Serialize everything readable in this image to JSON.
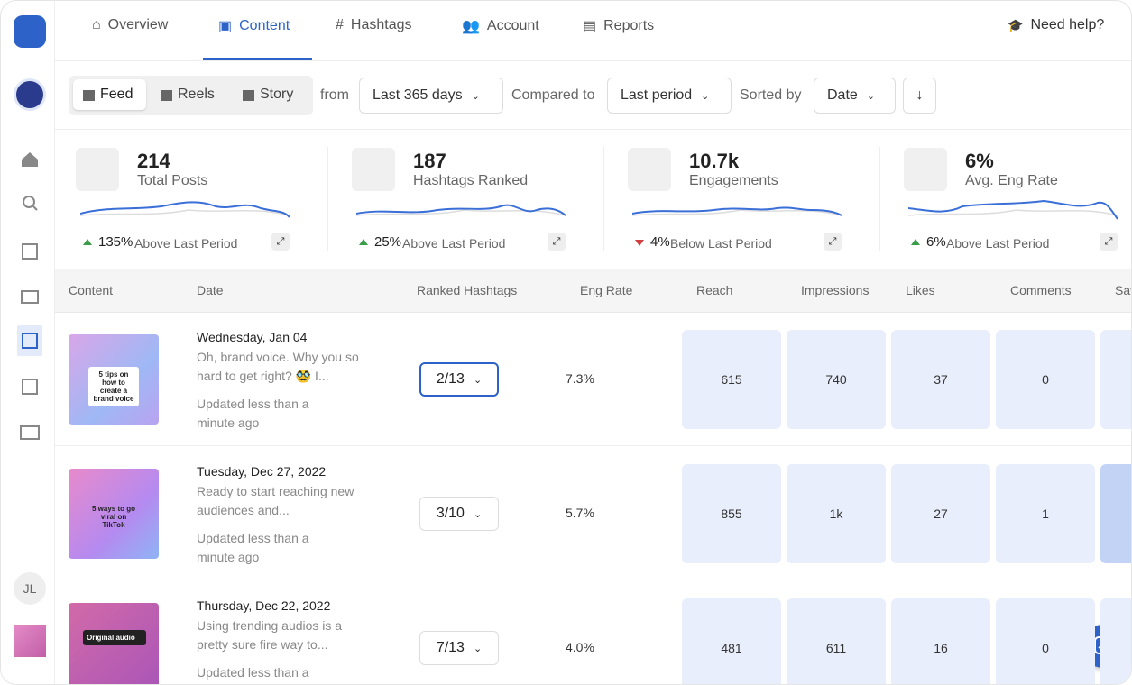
{
  "nav": {
    "tabs": [
      "Overview",
      "Content",
      "Hashtags",
      "Account",
      "Reports"
    ],
    "help": "Need help?"
  },
  "sidebar": {
    "initials": "JL"
  },
  "filters": {
    "types": [
      "Feed",
      "Reels",
      "Story"
    ],
    "from_label": "from",
    "range": "Last 365 days",
    "compare_label": "Compared to",
    "compare": "Last period",
    "sort_label": "Sorted by",
    "sort": "Date"
  },
  "stats": [
    {
      "value": "214",
      "label": "Total Posts",
      "change": "135%",
      "change_text": "Above Last Period",
      "trend": "up"
    },
    {
      "value": "187",
      "label": "Hashtags Ranked",
      "change": "25%",
      "change_text": "Above Last Period",
      "trend": "up"
    },
    {
      "value": "10.7k",
      "label": "Engagements",
      "change": "4%",
      "change_text": "Below Last Period",
      "trend": "down"
    },
    {
      "value": "6%",
      "label": "Avg. Eng Rate",
      "change": "6%",
      "change_text": "Above Last Period",
      "trend": "up"
    }
  ],
  "table": {
    "columns": [
      "Content",
      "Date",
      "Ranked Hashtags",
      "Eng Rate",
      "Reach",
      "Impressions",
      "Likes",
      "Comments",
      "Saves"
    ],
    "rows": [
      {
        "thumbnail_text": "5 tips on how to create a brand voice",
        "date": "Wednesday, Jan 04",
        "caption": "Oh, brand voice. Why you so hard to get right? 🥸 I...",
        "updated": "Updated less than a minute ago",
        "hashtags": "2/13",
        "eng_rate": "7.3%",
        "reach": "615",
        "impressions": "740",
        "likes": "37",
        "comments": "0"
      },
      {
        "thumbnail_text": "5 ways to go viral on TikTok",
        "date": "Tuesday, Dec 27, 2022",
        "caption": "Ready to start reaching new audiences and...",
        "updated": "Updated less than a minute ago",
        "hashtags": "3/10",
        "eng_rate": "5.7%",
        "reach": "855",
        "impressions": "1k",
        "likes": "27",
        "comments": "1"
      },
      {
        "thumbnail_text": "Original audio",
        "date": "Thursday, Dec 22, 2022",
        "caption": "Using trending audios is a pretty sure fire way to...",
        "updated": "Updated less than a minute ago",
        "hashtags": "7/13",
        "eng_rate": "4.0%",
        "reach": "481",
        "impressions": "611",
        "likes": "16",
        "comments": "0"
      }
    ]
  }
}
